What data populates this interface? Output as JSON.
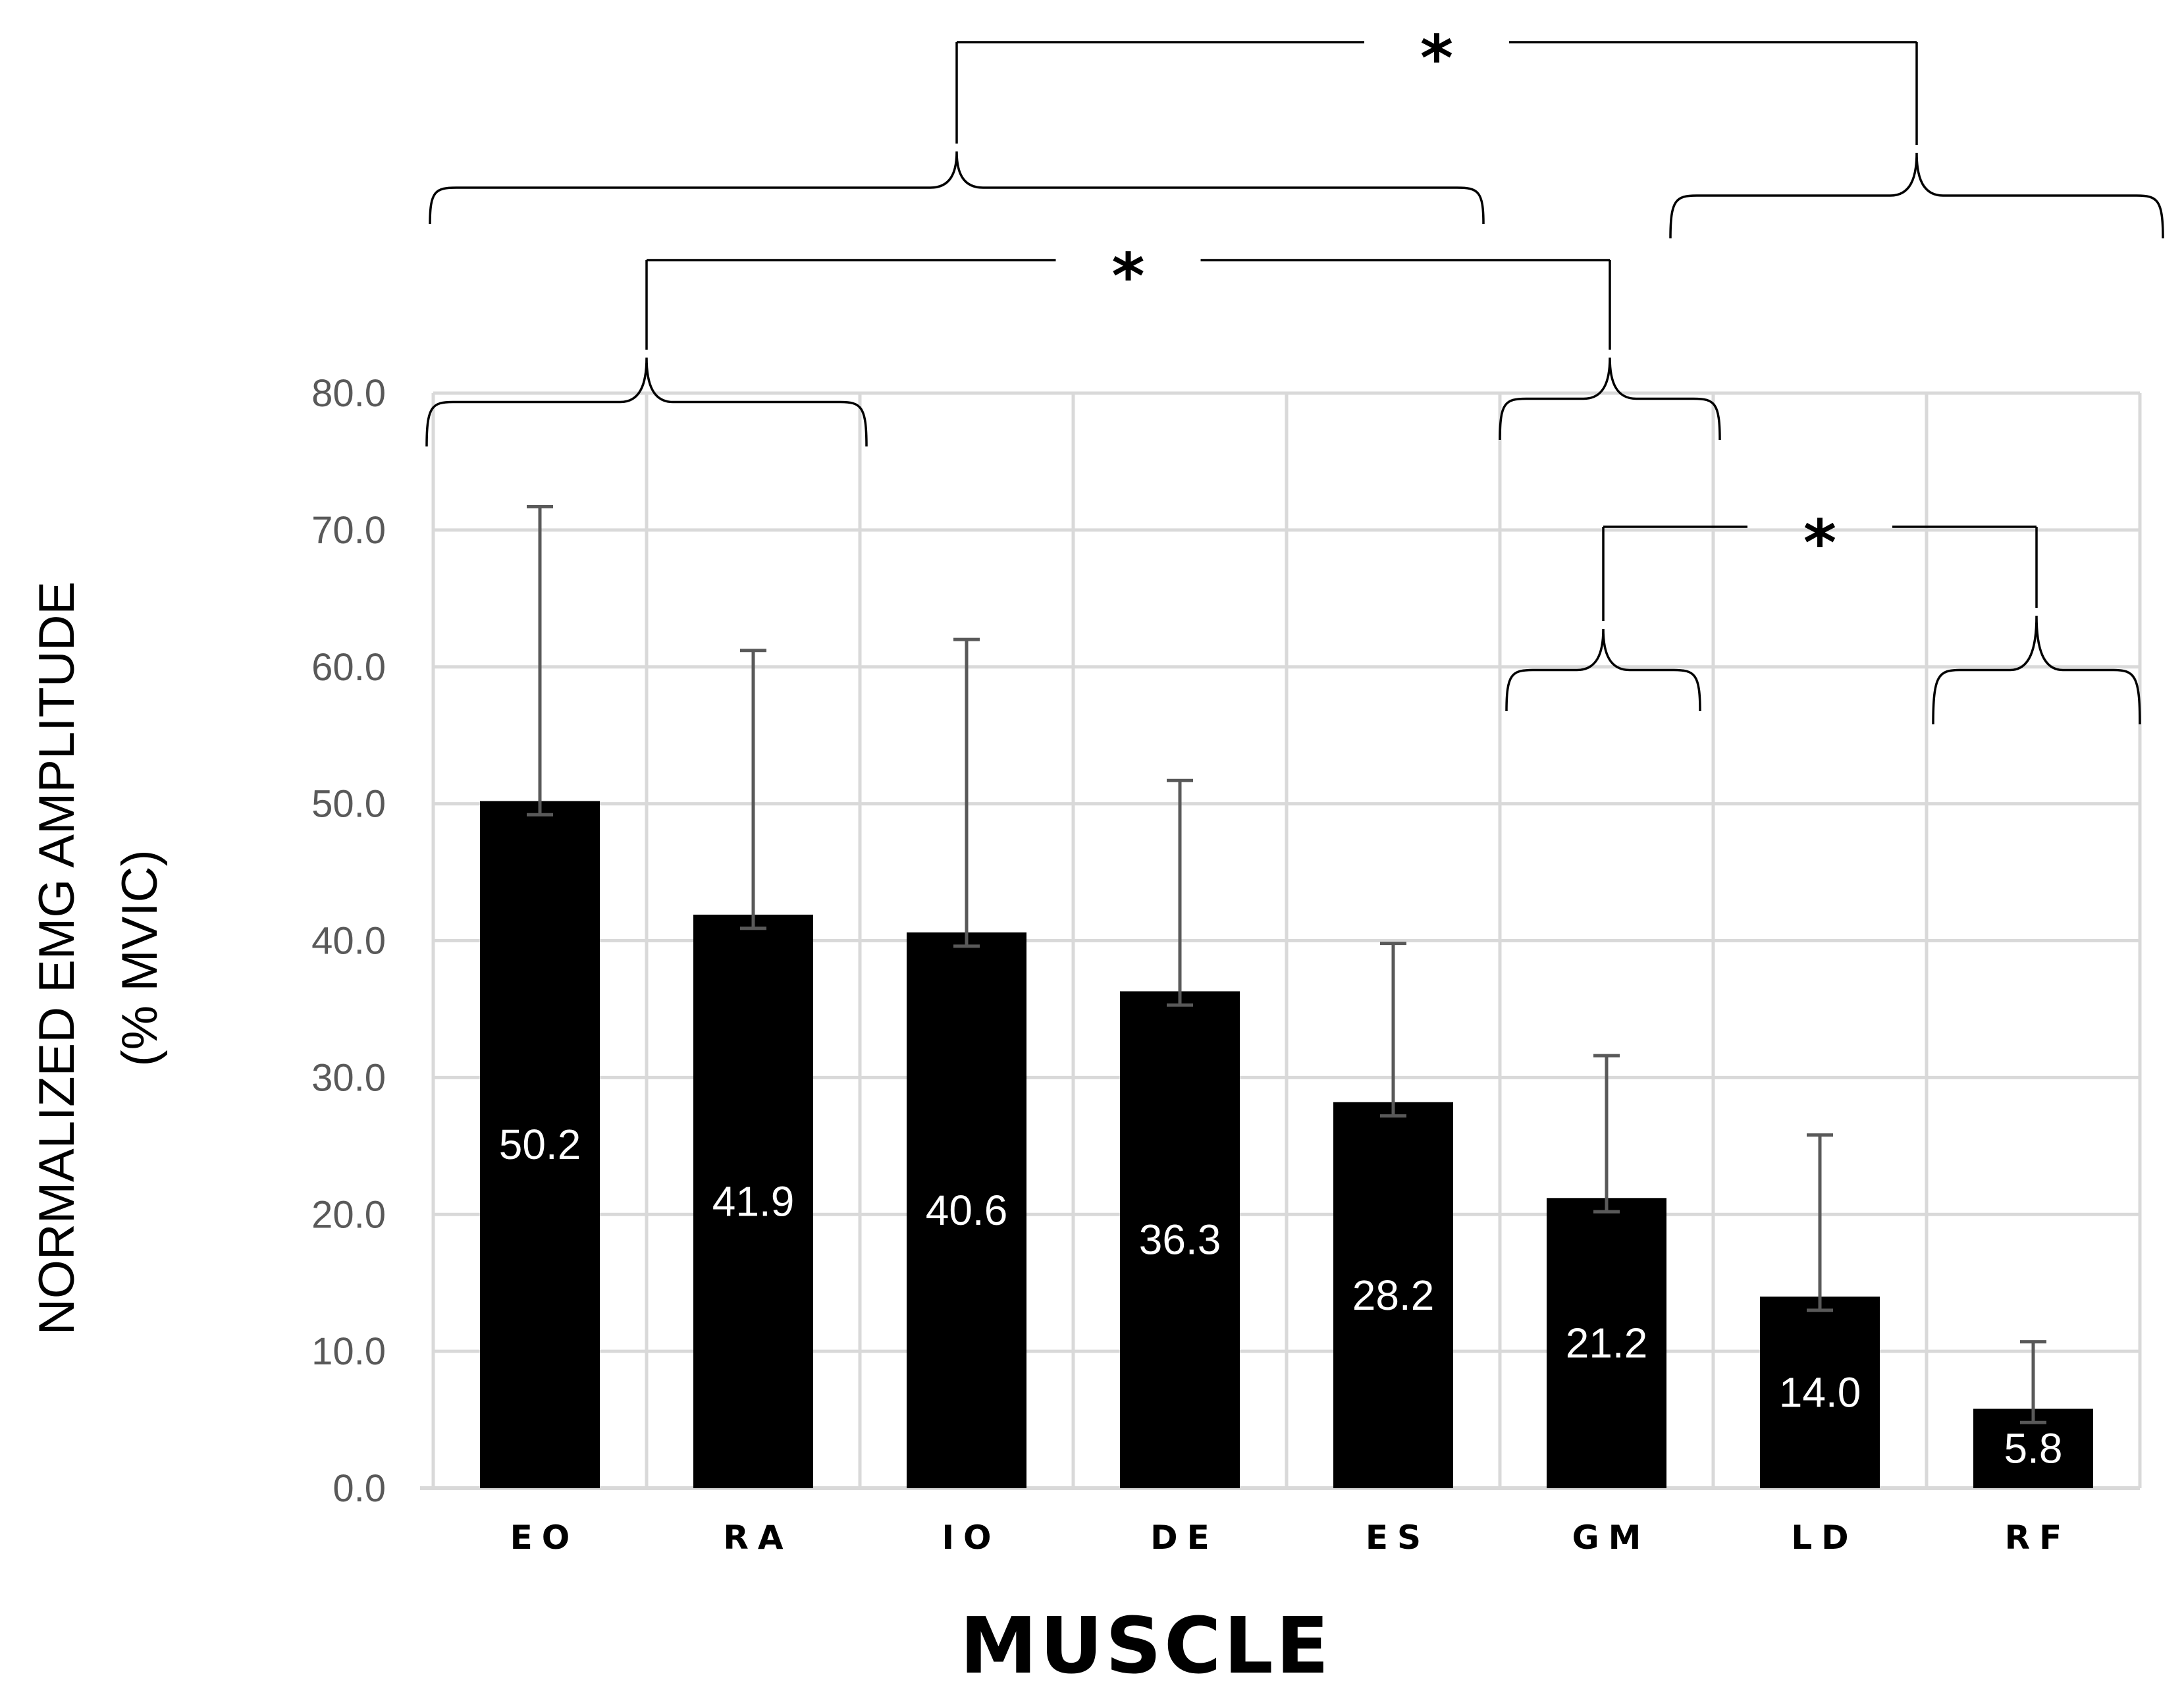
{
  "chart_data": {
    "type": "bar",
    "categories": [
      "EO",
      "RA",
      "IO",
      "DE",
      "ES",
      "GM",
      "LD",
      "RF"
    ],
    "series": [
      {
        "name": "Normalized EMG amplitude",
        "values": [
          50.2,
          41.9,
          40.6,
          36.3,
          28.2,
          21.2,
          14.0,
          5.8
        ],
        "value_labels": [
          "50.2",
          "41.9",
          "40.6",
          "36.3",
          "28.2",
          "21.2",
          "14.0",
          "5.8"
        ],
        "error_plus": [
          21.5,
          19.3,
          21.4,
          15.4,
          11.6,
          10.4,
          11.8,
          4.9
        ],
        "error_minus": [
          1.0,
          1.0,
          1.0,
          1.0,
          1.0,
          1.0,
          1.0,
          1.0
        ],
        "color": "#000000"
      }
    ],
    "title": "",
    "xlabel": "MUSCLE",
    "ylabel_line1": "NORMALIZED EMG AMPLITUDE",
    "ylabel_line2": "(%  MVIC)",
    "ylim": [
      0,
      80
    ],
    "yticks": [
      0,
      10,
      20,
      30,
      40,
      50,
      60,
      70,
      80
    ],
    "ytick_labels": [
      "0.0",
      "10.0",
      "20.0",
      "30.0",
      "40.0",
      "50.0",
      "60.0",
      "70.0",
      "80.0"
    ],
    "grid": true,
    "legend": "none",
    "significance": [
      {
        "label": "*",
        "group_a": [
          "EO",
          "RA",
          "IO",
          "DE",
          "ES"
        ],
        "group_b": [
          "LD",
          "RF"
        ]
      },
      {
        "label": "*",
        "group_a": [
          "EO",
          "RA"
        ],
        "group_b": [
          "GM"
        ]
      },
      {
        "label": "*",
        "group_a": [
          "GM"
        ],
        "group_b": [
          "RF"
        ]
      }
    ]
  }
}
